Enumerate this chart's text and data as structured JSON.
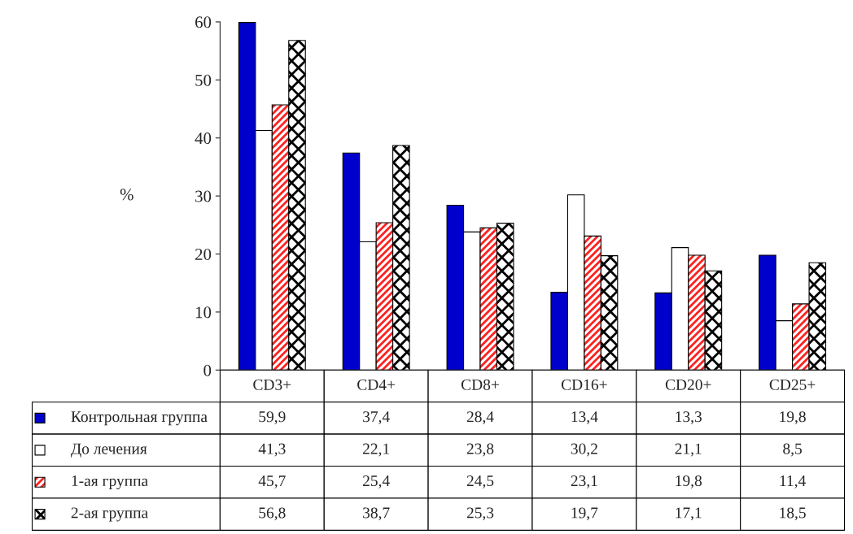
{
  "chart_data": {
    "type": "bar",
    "ylabel": "%",
    "categories": [
      "CD3+",
      "CD4+",
      "CD8+",
      "CD16+",
      "CD20+",
      "CD25+"
    ],
    "series": [
      {
        "name": "Контрольная группа",
        "color": "#0000cc",
        "values": [
          59.9,
          37.4,
          28.4,
          13.4,
          13.3,
          19.8
        ],
        "value_labels": [
          "59,9",
          "37,4",
          "28,4",
          "13,4",
          "13,3",
          "19,8"
        ]
      },
      {
        "name": "До лечения",
        "color": "#ffffff",
        "values": [
          41.3,
          22.1,
          23.8,
          30.2,
          21.1,
          8.5
        ],
        "value_labels": [
          "41,3",
          "22,1",
          "23,8",
          "30,2",
          "21,1",
          "8,5"
        ]
      },
      {
        "name": "1-ая группа",
        "color": "#ff2020",
        "values": [
          45.7,
          25.4,
          24.5,
          23.1,
          19.8,
          11.4
        ],
        "value_labels": [
          "45,7",
          "25,4",
          "24,5",
          "23,1",
          "19,8",
          "11,4"
        ]
      },
      {
        "name": "2-ая группа",
        "color": "#000000",
        "values": [
          56.8,
          38.7,
          25.3,
          19.7,
          17.1,
          18.5
        ],
        "value_labels": [
          "56,8",
          "38,7",
          "25,3",
          "19,7",
          "17,1",
          "18,5"
        ]
      }
    ],
    "ylim": [
      0,
      60
    ],
    "yticks": [
      0,
      10,
      20,
      30,
      40,
      50,
      60
    ],
    "legend": "bottom left",
    "grid": false
  }
}
